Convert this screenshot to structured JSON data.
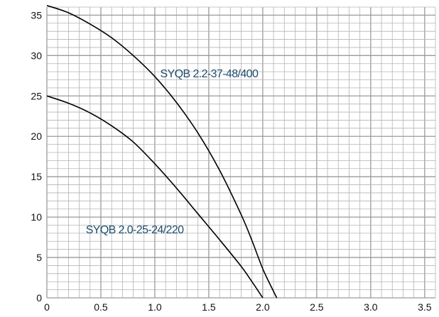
{
  "chart_data": {
    "type": "line",
    "title": "",
    "xlabel": "",
    "ylabel": "",
    "xlim": [
      0,
      3.6
    ],
    "ylim": [
      0,
      36
    ],
    "x_ticks": [
      0,
      0.5,
      1.0,
      1.5,
      2.0,
      2.5,
      3.0,
      3.5
    ],
    "x_tick_labels": [
      "0",
      "0.5",
      "1.0",
      "1.5",
      "2.0",
      "2.5",
      "3.0",
      "3.5"
    ],
    "y_ticks": [
      0,
      5,
      10,
      15,
      20,
      25,
      30,
      35
    ],
    "y_tick_labels": [
      "0",
      "5",
      "10",
      "15",
      "20",
      "25",
      "30",
      "35"
    ],
    "grid": true,
    "legend": "none",
    "label_color": "#1f4e6e",
    "line_color": "#000000",
    "series": [
      {
        "name": "SYQB 2.2-37-48/400",
        "x": [
          0.0,
          0.2,
          0.4,
          0.6,
          0.8,
          1.0,
          1.2,
          1.4,
          1.6,
          1.8,
          1.9,
          2.0,
          2.1,
          2.13
        ],
        "y": [
          36.2,
          35.3,
          33.9,
          32.2,
          30.0,
          27.4,
          24.2,
          20.4,
          15.8,
          10.3,
          7.1,
          3.6,
          0.8,
          0.0
        ]
      },
      {
        "name": "SYQB 2.0-25-24/220",
        "x": [
          0.0,
          0.2,
          0.4,
          0.6,
          0.8,
          1.0,
          1.2,
          1.4,
          1.6,
          1.8,
          1.9,
          2.0
        ],
        "y": [
          25.0,
          24.1,
          22.9,
          21.3,
          19.3,
          16.6,
          13.6,
          10.4,
          7.2,
          3.9,
          2.0,
          0.0
        ]
      }
    ],
    "annotations": [
      {
        "text": "SYQB 2.2-37-48/400",
        "x": 1.05,
        "y": 27.3
      },
      {
        "text": "SYQB 2.0-25-24/220",
        "x": 0.36,
        "y": 8.0
      }
    ]
  }
}
